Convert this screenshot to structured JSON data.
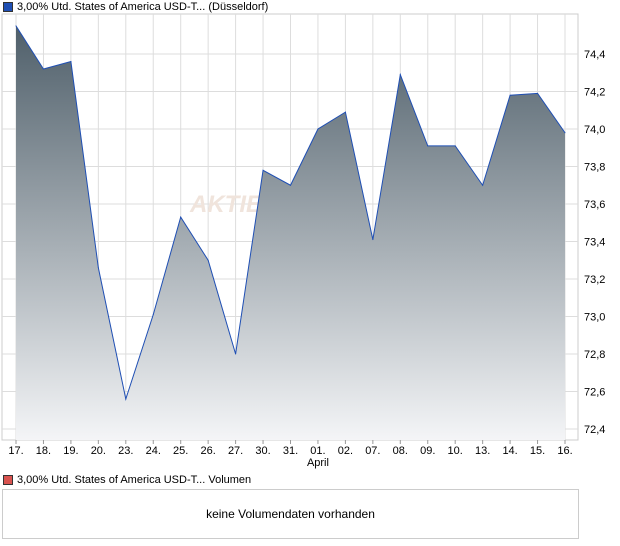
{
  "chart_data": {
    "type": "area",
    "title": "3,00% Utd. States of America USD-T... (Düsseldorf)",
    "categories": [
      "17.",
      "18.",
      "19.",
      "20.",
      "23.",
      "24.",
      "25.",
      "26.",
      "27.",
      "30.",
      "31.",
      "01.",
      "02.",
      "07.",
      "08.",
      "09.",
      "10.",
      "13.",
      "14.",
      "15.",
      "16."
    ],
    "values": [
      74.55,
      74.32,
      74.36,
      73.26,
      72.56,
      73.01,
      73.53,
      73.3,
      72.8,
      73.78,
      73.7,
      74.0,
      74.09,
      73.41,
      74.29,
      73.91,
      73.91,
      73.7,
      74.18,
      74.19,
      73.98
    ],
    "month_label": "April",
    "yticks": [
      72.4,
      72.6,
      72.8,
      73.0,
      73.2,
      73.4,
      73.6,
      73.8,
      74.0,
      74.2,
      74.4
    ],
    "ylim": [
      72.33,
      74.62
    ],
    "grid": true,
    "watermark": "AKTIE",
    "line_color": "#1f4fb4",
    "fill_top": "#4f5f6a",
    "fill_bottom": "#f4f5f7"
  },
  "volume": {
    "title": "3,00% Utd. States of America USD-T... Volumen",
    "message": "keine Volumendaten vorhanden",
    "color": "#d9534f"
  }
}
